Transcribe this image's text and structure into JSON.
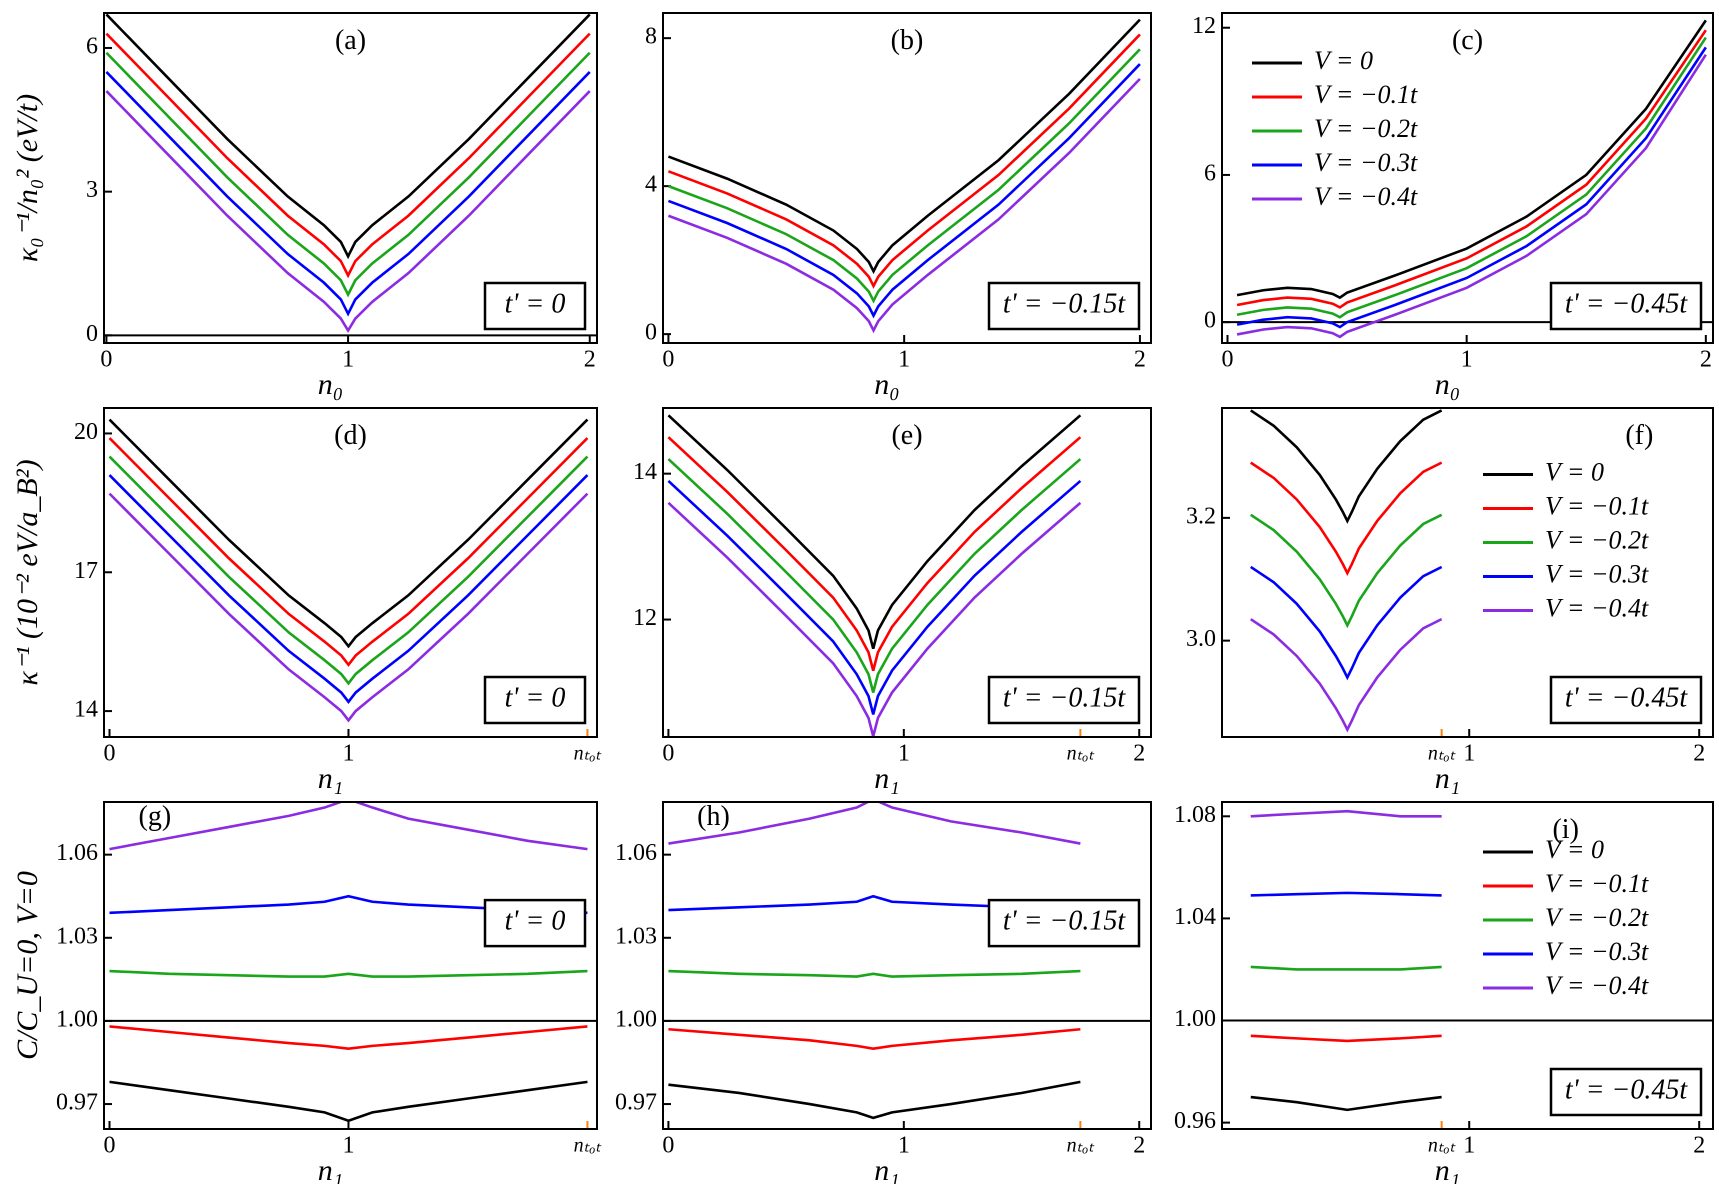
{
  "chart_data": [
    {
      "type": "line",
      "label": "(a)",
      "annotation": "t' = 0",
      "xlabel": "n₀",
      "ylabel": "κ₀⁻¹/n₀² (eV/t)",
      "x": [
        0,
        0.25,
        0.5,
        0.75,
        0.9,
        0.97,
        1,
        1.03,
        1.1,
        1.25,
        1.5,
        1.75,
        2
      ],
      "series": [
        {
          "color": "#000000",
          "values": [
            6.7,
            5.4,
            4.1,
            2.9,
            2.3,
            1.95,
            1.65,
            1.95,
            2.3,
            2.9,
            4.1,
            5.4,
            6.7
          ]
        },
        {
          "color": "#ff0000",
          "values": [
            6.3,
            5.0,
            3.7,
            2.5,
            1.9,
            1.55,
            1.25,
            1.55,
            1.9,
            2.5,
            3.7,
            5.0,
            6.3
          ]
        },
        {
          "color": "#1aa51a",
          "values": [
            5.9,
            4.6,
            3.3,
            2.1,
            1.5,
            1.15,
            0.85,
            1.15,
            1.5,
            2.1,
            3.3,
            4.6,
            5.9
          ]
        },
        {
          "color": "#0000ff",
          "values": [
            5.5,
            4.2,
            2.9,
            1.7,
            1.1,
            0.75,
            0.45,
            0.75,
            1.1,
            1.7,
            2.9,
            4.2,
            5.5
          ]
        },
        {
          "color": "#8b2be2",
          "values": [
            5.1,
            3.8,
            2.5,
            1.3,
            0.7,
            0.35,
            0.1,
            0.35,
            0.7,
            1.3,
            2.5,
            3.8,
            5.1
          ]
        }
      ],
      "xlim": [
        -0.01,
        2.03
      ],
      "ylim": [
        -0.16,
        6.73
      ],
      "xticks": [
        0,
        1,
        2
      ],
      "yticks": [
        0,
        3,
        6
      ],
      "hline": 0
    },
    {
      "type": "line",
      "label": "(b)",
      "annotation": "t' = −0.15t",
      "xlabel": "n₀",
      "x": [
        0,
        0.25,
        0.5,
        0.7,
        0.8,
        0.85,
        0.87,
        0.89,
        0.95,
        1.1,
        1.4,
        1.7,
        2
      ],
      "series": [
        {
          "color": "#000000",
          "values": [
            4.8,
            4.2,
            3.5,
            2.8,
            2.3,
            1.95,
            1.7,
            1.95,
            2.4,
            3.2,
            4.7,
            6.5,
            8.5
          ]
        },
        {
          "color": "#ff0000",
          "values": [
            4.4,
            3.8,
            3.1,
            2.4,
            1.9,
            1.55,
            1.3,
            1.55,
            2.0,
            2.8,
            4.3,
            6.1,
            8.1
          ]
        },
        {
          "color": "#1aa51a",
          "values": [
            4.0,
            3.4,
            2.7,
            2.0,
            1.5,
            1.15,
            0.9,
            1.15,
            1.6,
            2.4,
            3.9,
            5.7,
            7.7
          ]
        },
        {
          "color": "#0000ff",
          "values": [
            3.6,
            3.0,
            2.3,
            1.6,
            1.1,
            0.75,
            0.5,
            0.75,
            1.2,
            2.0,
            3.5,
            5.3,
            7.3
          ]
        },
        {
          "color": "#8b2be2",
          "values": [
            3.2,
            2.6,
            1.9,
            1.2,
            0.7,
            0.35,
            0.1,
            0.35,
            0.8,
            1.6,
            3.1,
            4.9,
            6.9
          ]
        }
      ],
      "xlim": [
        -0.023,
        2.047
      ],
      "ylim": [
        -0.24,
        8.68
      ],
      "xticks": [
        0,
        1,
        2
      ],
      "yticks": [
        0,
        4,
        8
      ]
    },
    {
      "type": "line",
      "label": "(c)",
      "annotation": "t' = −0.45t",
      "xlabel": "n₀",
      "legend": "upper left",
      "x": [
        0.04,
        0.15,
        0.25,
        0.35,
        0.44,
        0.47,
        0.5,
        0.7,
        1,
        1.25,
        1.5,
        1.75,
        2
      ],
      "series": [
        {
          "name": "V = 0",
          "color": "#000000",
          "values": [
            1.1,
            1.3,
            1.4,
            1.35,
            1.15,
            1.0,
            1.2,
            1.9,
            3.0,
            4.3,
            6.0,
            8.7,
            12.3
          ]
        },
        {
          "name": "V = −0.1t",
          "color": "#ff0000",
          "values": [
            0.7,
            0.9,
            1.0,
            0.95,
            0.75,
            0.6,
            0.8,
            1.5,
            2.6,
            3.9,
            5.6,
            8.3,
            11.9
          ]
        },
        {
          "name": "V = −0.2t",
          "color": "#1aa51a",
          "values": [
            0.3,
            0.5,
            0.6,
            0.55,
            0.35,
            0.2,
            0.4,
            1.1,
            2.2,
            3.5,
            5.2,
            7.9,
            11.6
          ]
        },
        {
          "name": "V = −0.3t",
          "color": "#0000ff",
          "values": [
            -0.1,
            0.1,
            0.2,
            0.15,
            -0.05,
            -0.2,
            0,
            0.7,
            1.8,
            3.1,
            4.8,
            7.5,
            11.2
          ]
        },
        {
          "name": "V = −0.4t",
          "color": "#8b2be2",
          "values": [
            -0.5,
            -0.3,
            -0.2,
            -0.25,
            -0.45,
            -0.6,
            -0.4,
            0.3,
            1.4,
            2.7,
            4.4,
            7.1,
            10.9
          ]
        }
      ],
      "xlim": [
        -0.023,
        2.03
      ],
      "ylim": [
        -0.85,
        12.6
      ],
      "xticks": [
        0,
        1,
        2
      ],
      "yticks": [
        0,
        6,
        12
      ],
      "hline": 0
    },
    {
      "type": "line",
      "label": "(d)",
      "annotation": "t' = 0",
      "xlabel": "n₁",
      "ylabel": "κ⁻¹ (10⁻² eV/a_B²)",
      "x": [
        0,
        0.25,
        0.5,
        0.75,
        0.9,
        0.97,
        1,
        1.03,
        1.1,
        1.25,
        1.5,
        1.75,
        2
      ],
      "series": [
        {
          "color": "#000000",
          "values": [
            20.3,
            19.0,
            17.7,
            16.5,
            15.9,
            15.6,
            15.4,
            15.6,
            15.9,
            16.5,
            17.7,
            19.0,
            20.3
          ]
        },
        {
          "color": "#ff0000",
          "values": [
            19.9,
            18.6,
            17.3,
            16.1,
            15.5,
            15.2,
            15.0,
            15.2,
            15.5,
            16.1,
            17.3,
            18.6,
            19.9
          ]
        },
        {
          "color": "#1aa51a",
          "values": [
            19.5,
            18.2,
            16.9,
            15.7,
            15.1,
            14.8,
            14.6,
            14.8,
            15.1,
            15.7,
            16.9,
            18.2,
            19.5
          ]
        },
        {
          "color": "#0000ff",
          "values": [
            19.1,
            17.8,
            16.5,
            15.3,
            14.7,
            14.4,
            14.2,
            14.4,
            14.7,
            15.3,
            16.5,
            17.8,
            19.1
          ]
        },
        {
          "color": "#8b2be2",
          "values": [
            18.7,
            17.4,
            16.1,
            14.9,
            14.3,
            14.0,
            13.8,
            14.0,
            14.3,
            14.9,
            16.1,
            17.4,
            18.7
          ]
        }
      ],
      "xlim": [
        -0.023,
        2.04
      ],
      "ylim": [
        13.44,
        20.55
      ],
      "xticks": [
        0,
        1,
        {
          "value": 2,
          "label": "nₜₒₜ"
        }
      ],
      "yticks": [
        14,
        17,
        20
      ]
    },
    {
      "type": "line",
      "label": "(e)",
      "annotation": "t' = −0.15t",
      "xlabel": "n₁",
      "x": [
        0,
        0.25,
        0.5,
        0.7,
        0.8,
        0.85,
        0.87,
        0.89,
        0.95,
        1.1,
        1.3,
        1.5,
        1.75
      ],
      "series": [
        {
          "color": "#000000",
          "values": [
            14.8,
            14.05,
            13.25,
            12.6,
            12.15,
            11.85,
            11.6,
            11.85,
            12.2,
            12.8,
            13.5,
            14.1,
            14.8
          ]
        },
        {
          "color": "#ff0000",
          "values": [
            14.5,
            13.75,
            12.95,
            12.3,
            11.85,
            11.55,
            11.3,
            11.55,
            11.9,
            12.5,
            13.2,
            13.8,
            14.5
          ]
        },
        {
          "color": "#1aa51a",
          "values": [
            14.2,
            13.45,
            12.65,
            12.0,
            11.55,
            11.25,
            11.0,
            11.25,
            11.6,
            12.2,
            12.9,
            13.5,
            14.2
          ]
        },
        {
          "color": "#0000ff",
          "values": [
            13.9,
            13.15,
            12.35,
            11.7,
            11.25,
            10.95,
            10.7,
            10.95,
            11.3,
            11.9,
            12.6,
            13.2,
            13.9
          ]
        },
        {
          "color": "#8b2be2",
          "values": [
            13.6,
            12.85,
            12.05,
            11.4,
            10.95,
            10.65,
            10.4,
            10.65,
            11.0,
            11.6,
            12.3,
            12.9,
            13.6
          ]
        }
      ],
      "xlim": [
        -0.023,
        2.05
      ],
      "ylim": [
        10.39,
        14.9
      ],
      "xticks": [
        0,
        1,
        {
          "value": 1.75,
          "label": "nₜₒₜ"
        },
        2
      ],
      "yticks": [
        12,
        14
      ]
    },
    {
      "type": "line",
      "label": "(f)",
      "annotation": "t' = −0.45t",
      "xlabel": "n₁",
      "legend": "center right",
      "x": [
        0.05,
        0.15,
        0.25,
        0.35,
        0.42,
        0.45,
        0.47,
        0.49,
        0.52,
        0.6,
        0.7,
        0.8,
        0.88
      ],
      "series": [
        {
          "name": "V = 0",
          "color": "#000000",
          "values": [
            3.375,
            3.35,
            3.315,
            3.27,
            3.23,
            3.21,
            3.195,
            3.21,
            3.235,
            3.28,
            3.325,
            3.36,
            3.375
          ]
        },
        {
          "name": "V = −0.1t",
          "color": "#ff0000",
          "values": [
            3.29,
            3.265,
            3.23,
            3.185,
            3.145,
            3.125,
            3.11,
            3.125,
            3.15,
            3.195,
            3.24,
            3.275,
            3.29
          ]
        },
        {
          "name": "V = −0.2t",
          "color": "#1aa51a",
          "values": [
            3.205,
            3.18,
            3.145,
            3.1,
            3.06,
            3.04,
            3.025,
            3.04,
            3.065,
            3.11,
            3.155,
            3.19,
            3.205
          ]
        },
        {
          "name": "V = −0.3t",
          "color": "#0000ff",
          "values": [
            3.12,
            3.095,
            3.06,
            3.015,
            2.975,
            2.955,
            2.94,
            2.955,
            2.98,
            3.025,
            3.07,
            3.105,
            3.12
          ]
        },
        {
          "name": "V = −0.4t",
          "color": "#8b2be2",
          "values": [
            3.035,
            3.01,
            2.975,
            2.93,
            2.89,
            2.87,
            2.855,
            2.87,
            2.895,
            2.94,
            2.985,
            3.02,
            3.035
          ]
        }
      ],
      "xlim": [
        -0.075,
        2.06
      ],
      "ylim": [
        2.843,
        3.379
      ],
      "xticks": [
        {
          "value": 0.88,
          "label": "nₜₒₜ"
        },
        1,
        2
      ],
      "yticks": [
        {
          "value": 3.0,
          "label": "3.0"
        },
        {
          "value": 3.2,
          "label": "3.2"
        }
      ]
    },
    {
      "type": "line",
      "label": "(g)",
      "annotation": "t' = 0",
      "xlabel": "n₁",
      "ylabel": "C/C_U=0, V=0",
      "x": [
        0,
        0.25,
        0.5,
        0.75,
        0.9,
        1,
        1.1,
        1.25,
        1.5,
        1.75,
        2
      ],
      "series": [
        {
          "color": "#000000",
          "values": [
            0.978,
            0.975,
            0.972,
            0.969,
            0.967,
            0.964,
            0.967,
            0.969,
            0.972,
            0.975,
            0.978
          ]
        },
        {
          "color": "#ff0000",
          "values": [
            0.998,
            0.996,
            0.994,
            0.992,
            0.991,
            0.99,
            0.991,
            0.992,
            0.994,
            0.996,
            0.998
          ]
        },
        {
          "color": "#1aa51a",
          "values": [
            1.018,
            1.017,
            1.0165,
            1.016,
            1.016,
            1.017,
            1.016,
            1.016,
            1.0165,
            1.017,
            1.018
          ]
        },
        {
          "color": "#0000ff",
          "values": [
            1.039,
            1.04,
            1.041,
            1.042,
            1.043,
            1.045,
            1.043,
            1.042,
            1.041,
            1.04,
            1.039
          ]
        },
        {
          "color": "#8b2be2",
          "values": [
            1.062,
            1.066,
            1.07,
            1.074,
            1.077,
            1.08,
            1.077,
            1.073,
            1.069,
            1.065,
            1.062
          ]
        }
      ],
      "xlim": [
        -0.023,
        2.04
      ],
      "ylim": [
        0.961,
        1.079
      ],
      "xticks": [
        0,
        1,
        {
          "value": 2,
          "label": "nₜₒₜ"
        }
      ],
      "yticks": [
        0.97,
        {
          "value": 1,
          "label": "1.00"
        },
        1.03,
        1.06
      ],
      "hline": 1
    },
    {
      "type": "line",
      "label": "(h)",
      "annotation": "t' = −0.15t",
      "xlabel": "n₁",
      "x": [
        0,
        0.3,
        0.6,
        0.8,
        0.87,
        0.95,
        1.2,
        1.5,
        1.75
      ],
      "series": [
        {
          "color": "#000000",
          "values": [
            0.977,
            0.974,
            0.97,
            0.967,
            0.965,
            0.967,
            0.97,
            0.974,
            0.978
          ]
        },
        {
          "color": "#ff0000",
          "values": [
            0.997,
            0.995,
            0.993,
            0.991,
            0.99,
            0.991,
            0.993,
            0.995,
            0.997
          ]
        },
        {
          "color": "#1aa51a",
          "values": [
            1.018,
            1.017,
            1.0165,
            1.016,
            1.017,
            1.016,
            1.0165,
            1.017,
            1.018
          ]
        },
        {
          "color": "#0000ff",
          "values": [
            1.04,
            1.041,
            1.042,
            1.043,
            1.045,
            1.043,
            1.042,
            1.041,
            1.04
          ]
        },
        {
          "color": "#8b2be2",
          "values": [
            1.064,
            1.068,
            1.073,
            1.077,
            1.08,
            1.077,
            1.072,
            1.068,
            1.064
          ]
        }
      ],
      "xlim": [
        -0.023,
        2.05
      ],
      "ylim": [
        0.961,
        1.079
      ],
      "xticks": [
        0,
        1,
        {
          "value": 1.75,
          "label": "nₜₒₜ"
        },
        2
      ],
      "yticks": [
        0.97,
        {
          "value": 1,
          "label": "1.00"
        },
        1.03,
        1.06
      ],
      "hline": 1
    },
    {
      "type": "line",
      "label": "(i)",
      "annotation": "t' = −0.45t",
      "xlabel": "n₁",
      "legend": "upper right",
      "x": [
        0.05,
        0.25,
        0.47,
        0.7,
        0.88
      ],
      "series": [
        {
          "name": "V = 0",
          "color": "#000000",
          "values": [
            0.97,
            0.968,
            0.965,
            0.968,
            0.97
          ]
        },
        {
          "name": "V = −0.1t",
          "color": "#ff0000",
          "values": [
            0.994,
            0.993,
            0.992,
            0.993,
            0.994
          ]
        },
        {
          "name": "V = −0.2t",
          "color": "#1aa51a",
          "values": [
            1.021,
            1.02,
            1.02,
            1.02,
            1.021
          ]
        },
        {
          "name": "V = −0.3t",
          "color": "#0000ff",
          "values": [
            1.049,
            1.0495,
            1.05,
            1.0495,
            1.049
          ]
        },
        {
          "name": "V = −0.4t",
          "color": "#8b2be2",
          "values": [
            1.08,
            1.081,
            1.082,
            1.08,
            1.08
          ]
        }
      ],
      "xlim": [
        -0.075,
        2.06
      ],
      "ylim": [
        0.9575,
        1.0856
      ],
      "xticks": [
        {
          "value": 0.88,
          "label": "nₜₒₜ"
        },
        1,
        2
      ],
      "yticks": [
        0.96,
        {
          "value": 1,
          "label": "1.00"
        },
        1.04,
        1.08
      ],
      "hline": 1
    }
  ]
}
